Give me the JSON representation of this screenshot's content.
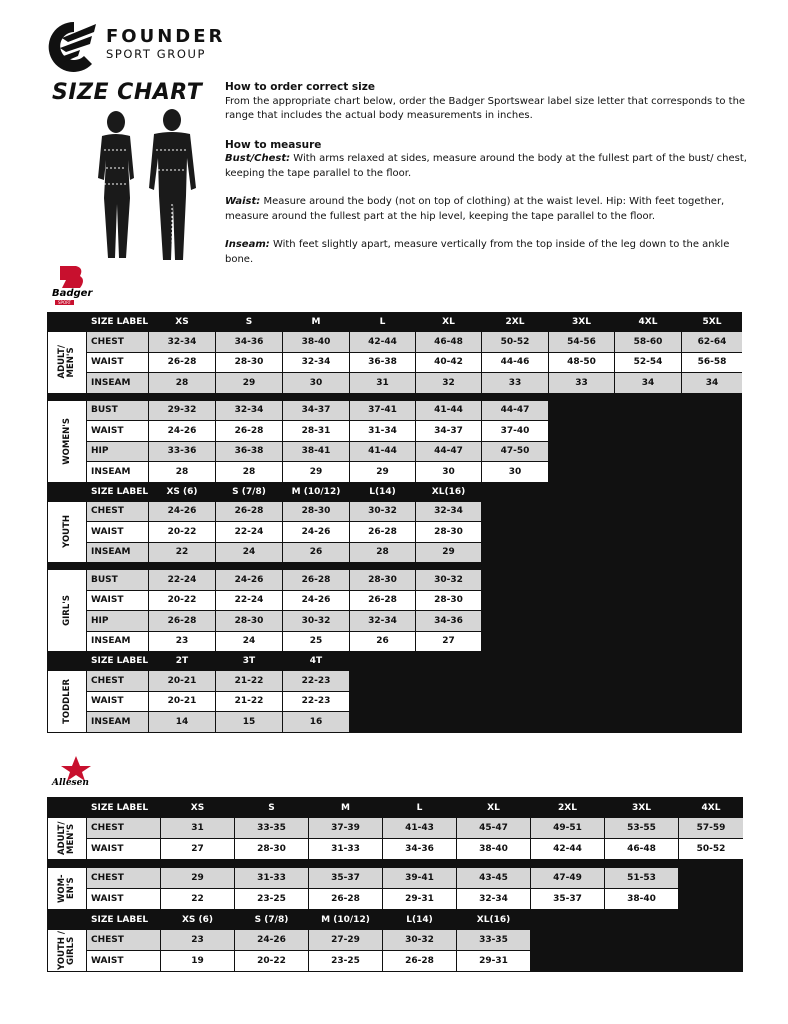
{
  "brand": {
    "name": "FOUNDER",
    "tagline": "SPORT GROUP"
  },
  "title": "SIZE CHART",
  "instructions": {
    "order_title": "How to order correct size",
    "order_text": "From the appropriate chart below, order the Badger Sportswear label size letter that corresponds to the range that includes the actual body measurements in inches.",
    "measure_title": "How to measure",
    "items": [
      {
        "term": "Bust/Chest:",
        "text": "With arms relaxed at sides, measure around the body at the fullest part of the bust/ chest, keeping the tape parallel to the floor."
      },
      {
        "term": "Waist:",
        "text": "Measure around the body (not on top of clothing) at the waist level. Hip: With feet together, measure around the fullest part at the hip level, keeping the tape parallel to the floor."
      },
      {
        "term": "Inseam:",
        "text": "With feet slightly apart, measure vertically from the top inside of the leg down to the ankle bone."
      }
    ]
  },
  "badger_table": {
    "logo": "Badger",
    "logo_sub": "SPORT",
    "sections": [
      {
        "header": [
          "SIZE LABEL",
          "XS",
          "S",
          "M",
          "L",
          "XL",
          "2XL",
          "3XL",
          "4XL",
          "5XL"
        ],
        "groups": [
          {
            "label": "ADULT/ MEN'S",
            "rows": [
              {
                "label": "CHEST",
                "values": [
                  "32-34",
                  "34-36",
                  "38-40",
                  "42-44",
                  "46-48",
                  "50-52",
                  "54-56",
                  "58-60",
                  "62-64"
                ]
              },
              {
                "label": "WAIST",
                "values": [
                  "26-28",
                  "28-30",
                  "32-34",
                  "36-38",
                  "40-42",
                  "44-46",
                  "48-50",
                  "52-54",
                  "56-58"
                ]
              },
              {
                "label": "INSEAM",
                "values": [
                  "28",
                  "29",
                  "30",
                  "31",
                  "32",
                  "33",
                  "33",
                  "34",
                  "34"
                ]
              }
            ]
          },
          {
            "label": "WOMEN'S",
            "rows": [
              {
                "label": "BUST",
                "values": [
                  "29-32",
                  "32-34",
                  "34-37",
                  "37-41",
                  "41-44",
                  "44-47"
                ]
              },
              {
                "label": "WAIST",
                "values": [
                  "24-26",
                  "26-28",
                  "28-31",
                  "31-34",
                  "34-37",
                  "37-40"
                ]
              },
              {
                "label": "HIP",
                "values": [
                  "33-36",
                  "36-38",
                  "38-41",
                  "41-44",
                  "44-47",
                  "47-50"
                ]
              },
              {
                "label": "INSEAM",
                "values": [
                  "28",
                  "28",
                  "29",
                  "29",
                  "30",
                  "30"
                ]
              }
            ]
          }
        ]
      },
      {
        "header": [
          "SIZE LABEL",
          "XS (6)",
          "S (7/8)",
          "M (10/12)",
          "L(14)",
          "XL(16)"
        ],
        "groups": [
          {
            "label": "YOUTH",
            "rows": [
              {
                "label": "CHEST",
                "values": [
                  "24-26",
                  "26-28",
                  "28-30",
                  "30-32",
                  "32-34"
                ]
              },
              {
                "label": "WAIST",
                "values": [
                  "20-22",
                  "22-24",
                  "24-26",
                  "26-28",
                  "28-30"
                ]
              },
              {
                "label": "INSEAM",
                "values": [
                  "22",
                  "24",
                  "26",
                  "28",
                  "29"
                ]
              }
            ]
          },
          {
            "label": "GIRL'S",
            "rows": [
              {
                "label": "BUST",
                "values": [
                  "22-24",
                  "24-26",
                  "26-28",
                  "28-30",
                  "30-32"
                ]
              },
              {
                "label": "WAIST",
                "values": [
                  "20-22",
                  "22-24",
                  "24-26",
                  "26-28",
                  "28-30"
                ]
              },
              {
                "label": "HIP",
                "values": [
                  "26-28",
                  "28-30",
                  "30-32",
                  "32-34",
                  "34-36"
                ]
              },
              {
                "label": "INSEAM",
                "values": [
                  "23",
                  "24",
                  "25",
                  "26",
                  "27"
                ]
              }
            ]
          }
        ]
      },
      {
        "header": [
          "SIZE LABEL",
          "2T",
          "3T",
          "4T"
        ],
        "groups": [
          {
            "label": "TODDLER",
            "rows": [
              {
                "label": "CHEST",
                "values": [
                  "20-21",
                  "21-22",
                  "22-23"
                ]
              },
              {
                "label": "WAIST",
                "values": [
                  "20-21",
                  "21-22",
                  "22-23"
                ]
              },
              {
                "label": "INSEAM",
                "values": [
                  "14",
                  "15",
                  "16"
                ]
              }
            ]
          }
        ]
      }
    ]
  },
  "alleson_table": {
    "logo": "Allesen",
    "sections": [
      {
        "header": [
          "SIZE LABEL",
          "XS",
          "S",
          "M",
          "L",
          "XL",
          "2XL",
          "3XL",
          "4XL"
        ],
        "groups": [
          {
            "label": "ADULT/ MEN'S",
            "rows": [
              {
                "label": "CHEST",
                "values": [
                  "31",
                  "33-35",
                  "37-39",
                  "41-43",
                  "45-47",
                  "49-51",
                  "53-55",
                  "57-59"
                ]
              },
              {
                "label": "WAIST",
                "values": [
                  "27",
                  "28-30",
                  "31-33",
                  "34-36",
                  "38-40",
                  "42-44",
                  "46-48",
                  "50-52"
                ]
              }
            ]
          },
          {
            "label": "WOM-EN'S",
            "rows": [
              {
                "label": "CHEST",
                "values": [
                  "29",
                  "31-33",
                  "35-37",
                  "39-41",
                  "43-45",
                  "47-49",
                  "51-53"
                ]
              },
              {
                "label": "WAIST",
                "values": [
                  "22",
                  "23-25",
                  "26-28",
                  "29-31",
                  "32-34",
                  "35-37",
                  "38-40"
                ]
              }
            ]
          }
        ]
      },
      {
        "header": [
          "SIZE LABEL",
          "XS (6)",
          "S (7/8)",
          "M (10/12)",
          "L(14)",
          "XL(16)"
        ],
        "groups": [
          {
            "label": "YOUTH / GIRLS",
            "rows": [
              {
                "label": "CHEST",
                "values": [
                  "23",
                  "24-26",
                  "27-29",
                  "30-32",
                  "33-35"
                ]
              },
              {
                "label": "WAIST",
                "values": [
                  "19",
                  "20-22",
                  "23-25",
                  "26-28",
                  "29-31"
                ]
              }
            ]
          }
        ]
      }
    ]
  }
}
